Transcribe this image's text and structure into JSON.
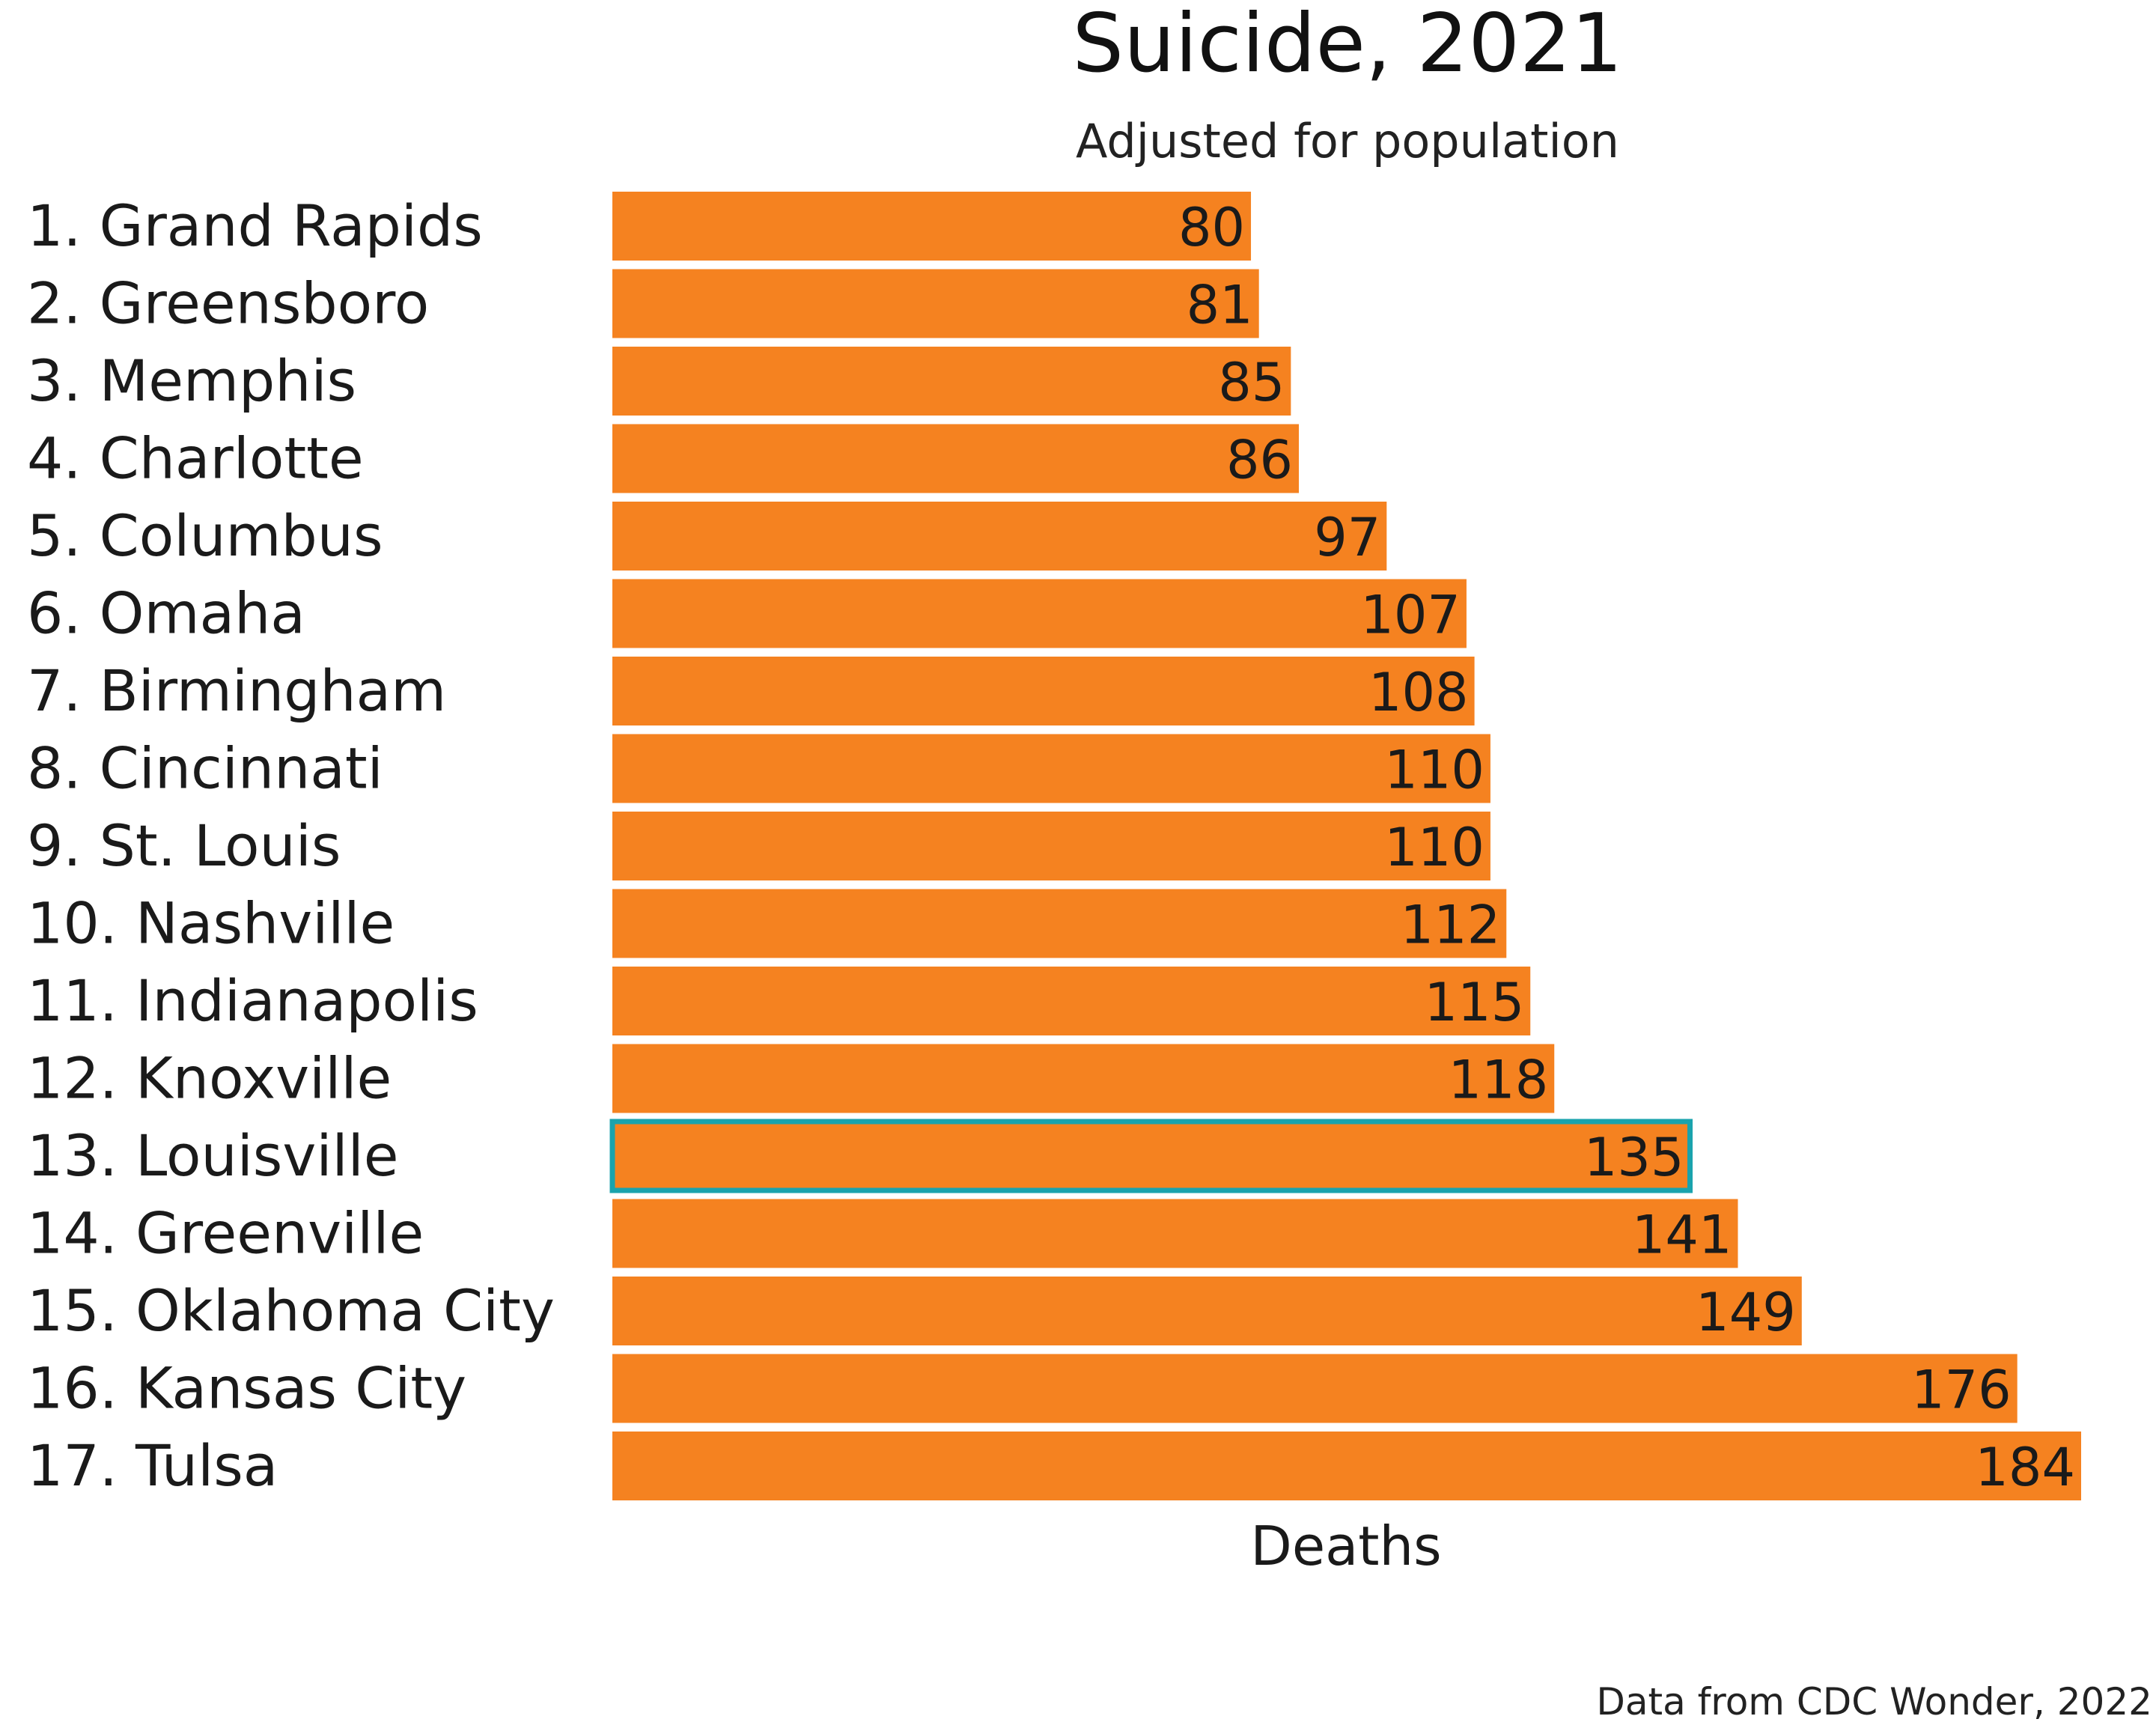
{
  "chart_data": {
    "type": "bar",
    "orientation": "horizontal",
    "title": "Suicide, 2021",
    "subtitle": "Adjusted for population",
    "xlabel": "Deaths",
    "source": "Data from CDC Wonder, 2022",
    "grid": false,
    "legend": "none",
    "xlim": [
      0,
      184
    ],
    "categories": [
      "1. Grand Rapids",
      "2. Greensboro",
      "3. Memphis",
      "4. Charlotte",
      "5. Columbus",
      "6. Omaha",
      "7. Birmingham",
      "8. Cincinnati",
      "9. St. Louis",
      "10. Nashville",
      "11. Indianapolis",
      "12. Knoxville",
      "13. Louisville",
      "14. Greenville",
      "15. Oklahoma City",
      "16. Kansas City",
      "17. Tulsa"
    ],
    "values": [
      80,
      81,
      85,
      86,
      97,
      107,
      108,
      110,
      110,
      112,
      115,
      118,
      135,
      141,
      149,
      176,
      184
    ],
    "highlight": "13. Louisville",
    "colors": {
      "bar": "#f58220",
      "highlight": "#1aa3ad",
      "text": "#1a1a1a"
    }
  }
}
